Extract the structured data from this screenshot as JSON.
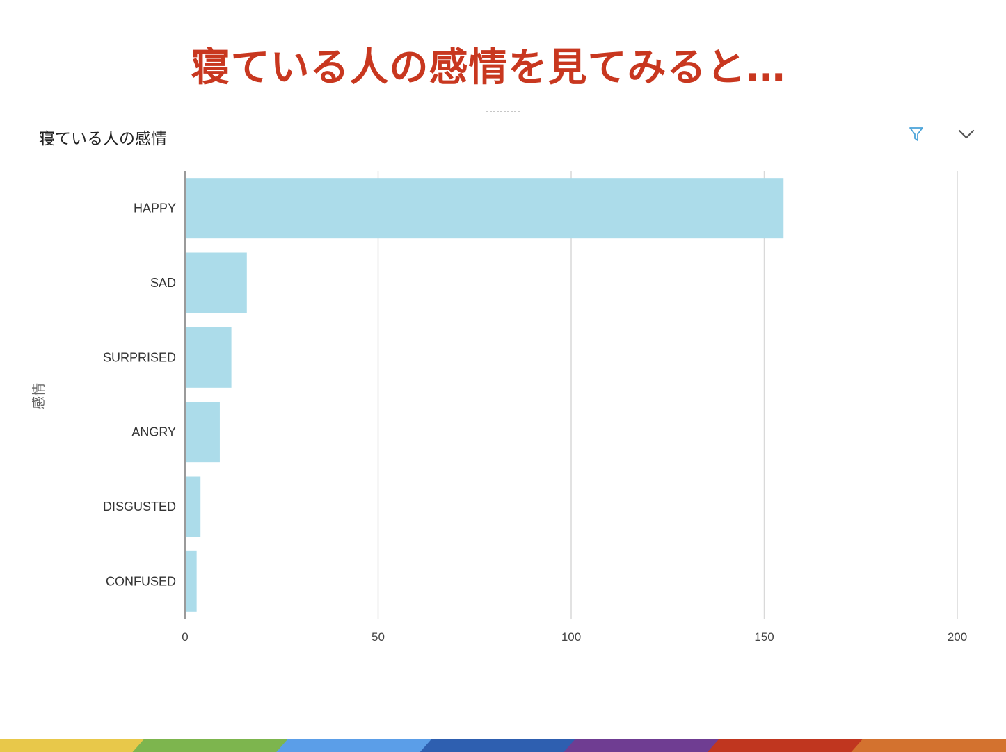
{
  "slide": {
    "title": "寝ている人の感情を見てみると…"
  },
  "panel": {
    "title": "寝ている人の感情",
    "filter_icon": "filter-icon",
    "expand_icon": "chevron-down-icon"
  },
  "chart_data": {
    "type": "bar",
    "orientation": "horizontal",
    "categories": [
      "HAPPY",
      "SAD",
      "SURPRISED",
      "ANGRY",
      "DISGUSTED",
      "CONFUSED"
    ],
    "values": [
      155,
      16,
      12,
      9,
      4,
      3
    ],
    "ylabel": "感情",
    "xlabel": "",
    "xlim": [
      0,
      200
    ],
    "xticks": [
      "0",
      "50",
      "100",
      "150",
      "200"
    ],
    "grid": true,
    "bar_color": "#acdcea"
  },
  "colors": {
    "title": "#c8371f",
    "rainbow": [
      "#e8c84a",
      "#7db54e",
      "#5b9ee8",
      "#2e5fb0",
      "#6f3d92",
      "#c0361f",
      "#d3722f"
    ]
  }
}
